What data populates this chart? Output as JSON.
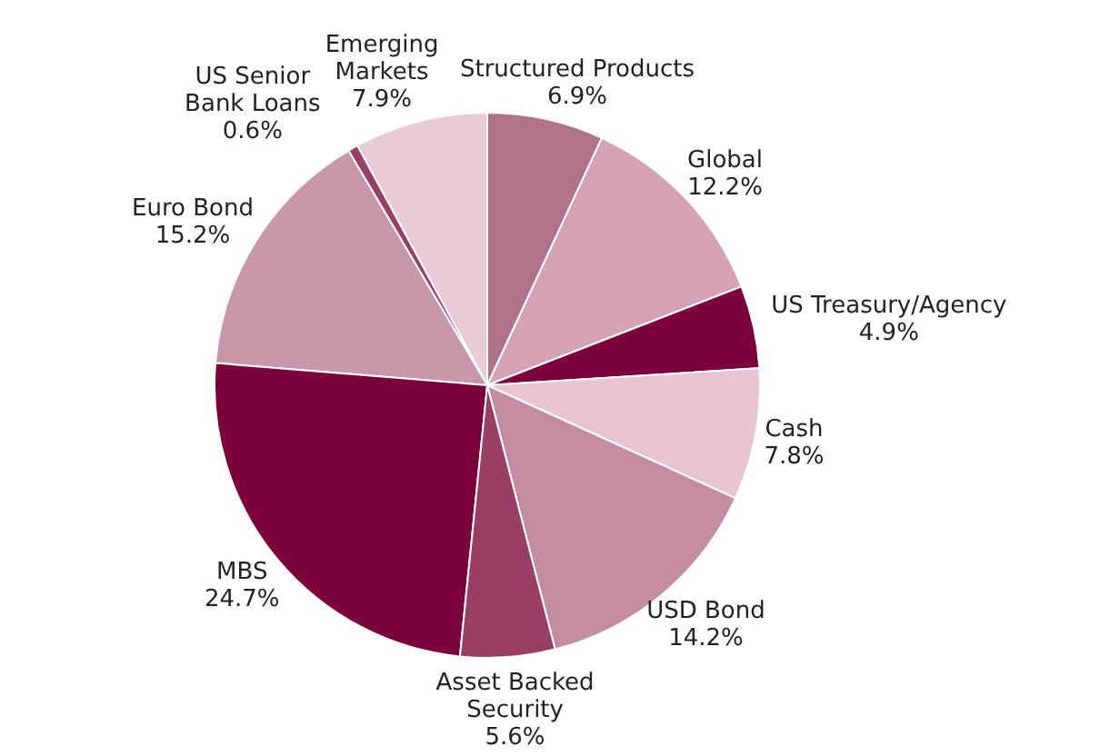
{
  "chart_data": {
    "type": "pie",
    "categories": [
      "Structured Products",
      "Global",
      "US Treasury/Agency",
      "Cash",
      "USD Bond",
      "Asset Backed Security",
      "MBS",
      "Euro Bond",
      "US Senior Bank Loans",
      "Emerging Markets"
    ],
    "values": [
      6.9,
      12.2,
      4.9,
      7.8,
      14.2,
      5.6,
      24.7,
      15.2,
      0.6,
      7.9
    ],
    "value_labels": [
      "6.9%",
      "12.2%",
      "4.9%",
      "7.8%",
      "14.2%",
      "5.6%",
      "24.7%",
      "15.2%",
      "0.6%",
      "7.9%"
    ],
    "colors": [
      "#b07389",
      "#d4a2b4",
      "#7c003b",
      "#e8c5d1",
      "#c48ca1",
      "#9a3f64",
      "#7c003b",
      "#c997aa",
      "#9a3f64",
      "#e8cbd5"
    ]
  }
}
